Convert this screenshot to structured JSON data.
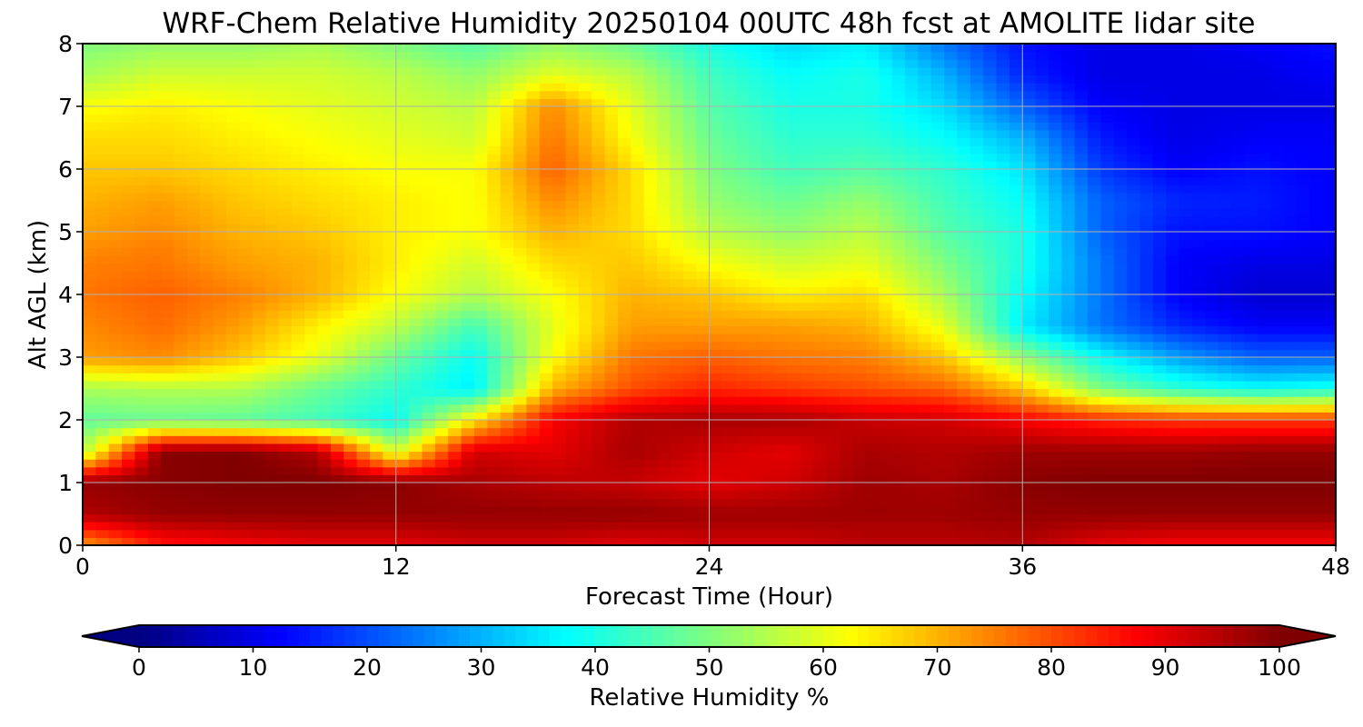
{
  "chart_data": {
    "type": "heatmap",
    "title": "WRF-Chem Relative Humidity 20250104 00UTC 48h fcst at AMOLITE lidar site",
    "xlabel": "Forecast Time (Hour)",
    "ylabel": "Alt AGL (km)",
    "xlim": [
      0,
      48
    ],
    "ylim": [
      0,
      8
    ],
    "x_ticks": [
      0,
      12,
      24,
      36,
      48
    ],
    "y_ticks": [
      0,
      1,
      2,
      3,
      4,
      5,
      6,
      7,
      8
    ],
    "grid": true,
    "colormap": "jet",
    "colorbar": {
      "label": "Relative Humidity %",
      "range": [
        0,
        100
      ],
      "ticks": [
        0,
        10,
        20,
        30,
        40,
        50,
        60,
        70,
        80,
        90,
        100
      ],
      "extend": "both",
      "orientation": "horizontal",
      "placement": "bottom"
    },
    "x": [
      0,
      3,
      6,
      9,
      12,
      15,
      18,
      21,
      24,
      27,
      30,
      33,
      36,
      39,
      42,
      45,
      48
    ],
    "y": [
      0,
      0.5,
      1,
      1.5,
      2,
      2.5,
      3,
      3.5,
      4,
      4.5,
      5,
      5.5,
      6,
      6.5,
      7,
      7.5,
      8
    ],
    "z": [
      [
        72,
        85,
        88,
        90,
        90,
        92,
        92,
        90,
        92,
        92,
        94,
        94,
        95,
        90,
        88,
        88,
        88
      ],
      [
        95,
        98,
        98,
        98,
        98,
        98,
        98,
        98,
        97,
        97,
        97,
        97,
        98,
        98,
        98,
        98,
        98
      ],
      [
        98,
        99,
        100,
        100,
        99,
        96,
        94,
        93,
        90,
        92,
        97,
        96,
        99,
        100,
        100,
        100,
        100
      ],
      [
        55,
        99,
        100,
        95,
        58,
        92,
        90,
        96,
        92,
        90,
        96,
        95,
        97,
        97,
        97,
        98,
        98
      ],
      [
        47,
        48,
        47,
        44,
        38,
        65,
        88,
        95,
        96,
        96,
        93,
        92,
        88,
        84,
        82,
        82,
        82
      ],
      [
        54,
        55,
        55,
        48,
        42,
        36,
        70,
        80,
        84,
        82,
        80,
        78,
        68,
        50,
        42,
        38,
        40
      ],
      [
        72,
        74,
        68,
        60,
        48,
        38,
        62,
        76,
        78,
        76,
        75,
        68,
        52,
        38,
        28,
        22,
        22
      ],
      [
        74,
        77,
        72,
        64,
        56,
        44,
        60,
        72,
        72,
        72,
        70,
        60,
        36,
        24,
        16,
        12,
        12
      ],
      [
        76,
        78,
        75,
        70,
        62,
        55,
        62,
        70,
        68,
        64,
        66,
        54,
        38,
        24,
        12,
        8,
        8
      ],
      [
        75,
        76,
        72,
        70,
        64,
        58,
        66,
        68,
        62,
        58,
        60,
        50,
        40,
        24,
        12,
        10,
        10
      ],
      [
        72,
        74,
        70,
        68,
        64,
        62,
        70,
        66,
        56,
        52,
        56,
        46,
        40,
        22,
        14,
        14,
        12
      ],
      [
        70,
        72,
        68,
        66,
        64,
        62,
        74,
        66,
        52,
        48,
        52,
        44,
        38,
        22,
        16,
        15,
        12
      ],
      [
        68,
        68,
        66,
        64,
        62,
        62,
        78,
        66,
        50,
        44,
        46,
        42,
        35,
        18,
        12,
        14,
        12
      ],
      [
        66,
        66,
        64,
        62,
        60,
        58,
        76,
        62,
        48,
        42,
        42,
        38,
        30,
        15,
        10,
        12,
        12
      ],
      [
        62,
        64,
        62,
        60,
        58,
        56,
        74,
        60,
        46,
        40,
        40,
        34,
        22,
        12,
        10,
        10,
        10
      ],
      [
        54,
        58,
        58,
        58,
        56,
        52,
        60,
        56,
        44,
        38,
        40,
        30,
        16,
        10,
        10,
        10,
        12
      ],
      [
        50,
        52,
        52,
        54,
        50,
        46,
        52,
        48,
        40,
        34,
        36,
        24,
        14,
        10,
        10,
        12,
        14
      ]
    ]
  }
}
